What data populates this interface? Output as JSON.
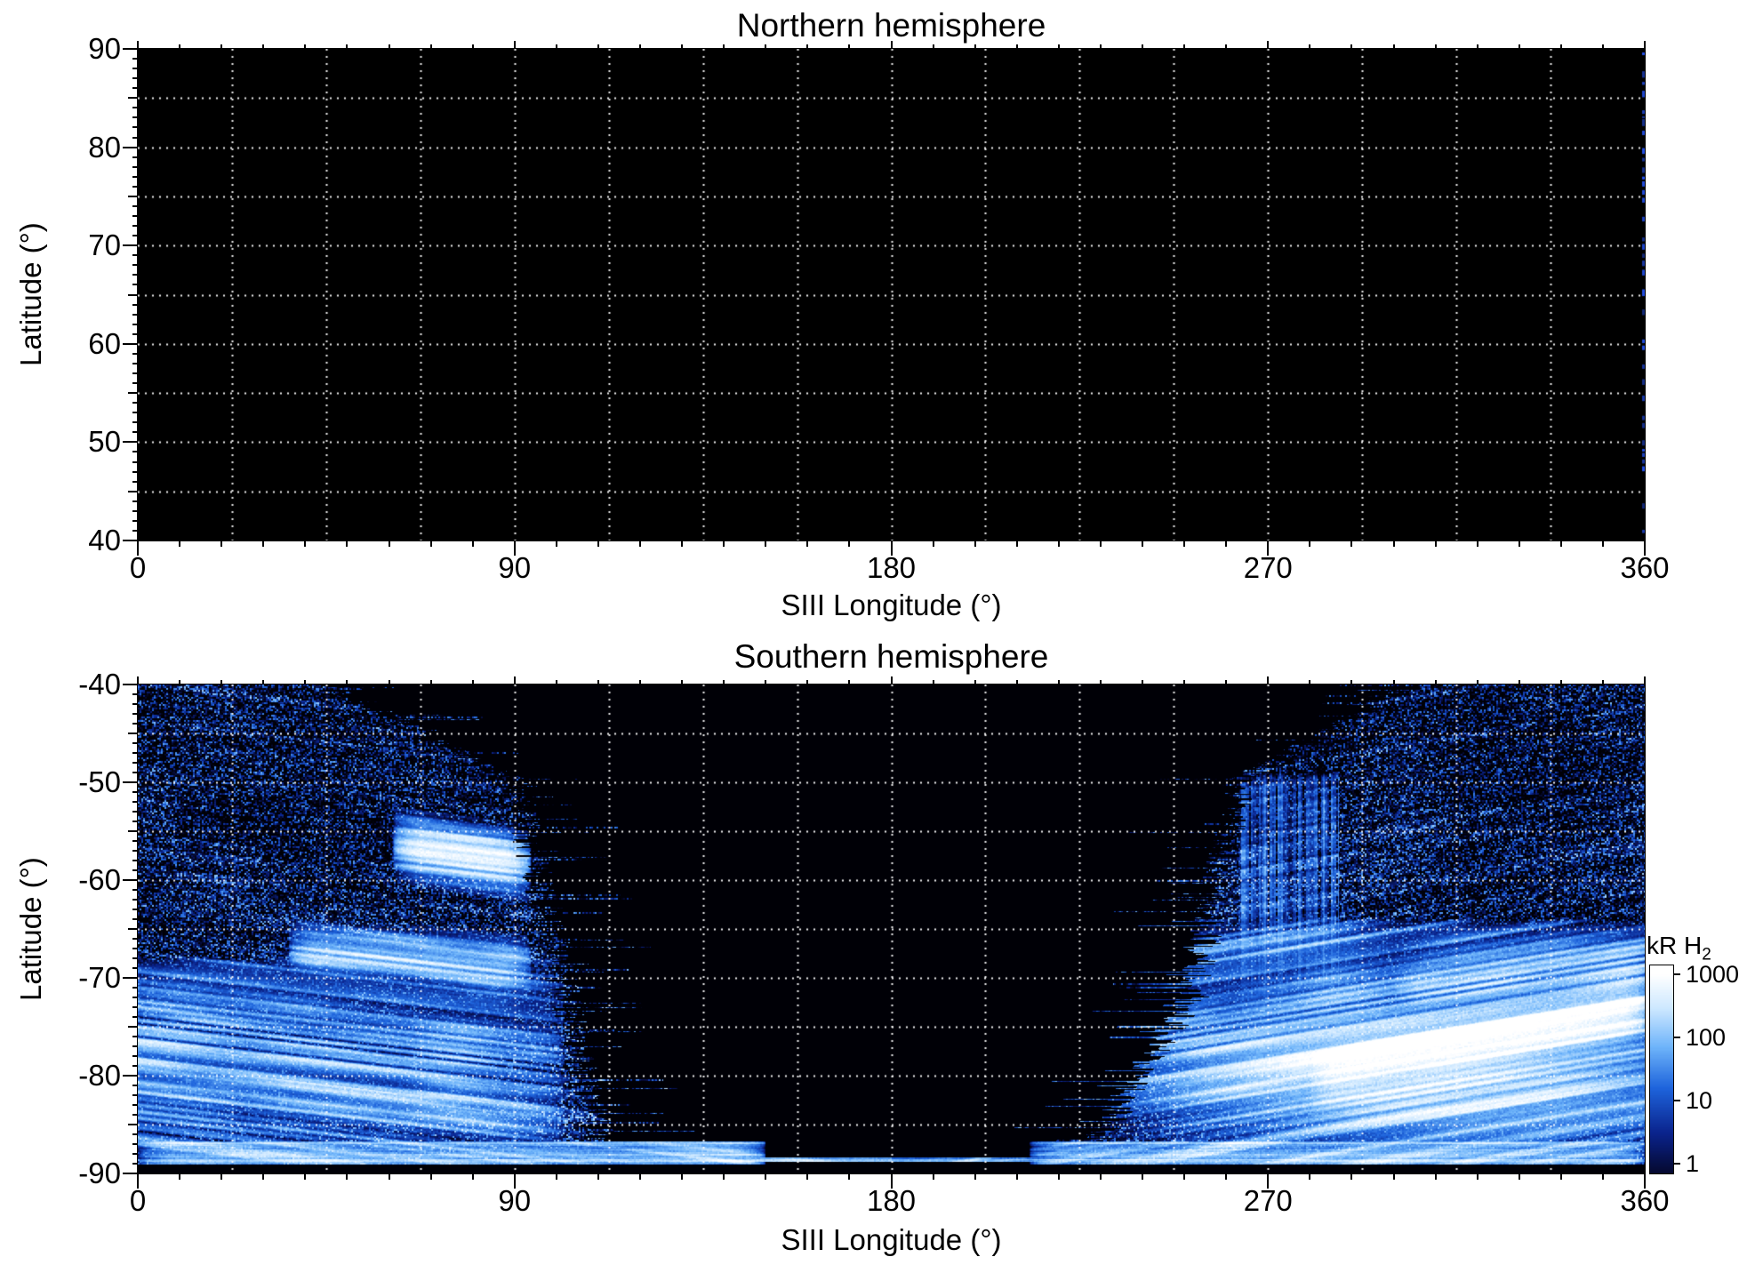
{
  "figure": {
    "bg": "#ffffff",
    "text_color": "#000000",
    "grid": {
      "x_interval_deg": 22.5,
      "y_interval_deg": 5,
      "color": "#ffffff",
      "style": "dotted"
    },
    "panels": [
      {
        "id": "north",
        "title": "Northern hemisphere",
        "xlabel": "SIII Longitude (°)",
        "ylabel": "Latitude (°)",
        "xticks": [
          0,
          90,
          180,
          270,
          360
        ],
        "yticks": [
          90,
          80,
          70,
          60,
          50,
          40
        ],
        "xlim": [
          0,
          360
        ],
        "ylim": [
          40,
          90
        ]
      },
      {
        "id": "south",
        "title": "Southern hemisphere",
        "xlabel": "SIII Longitude (°)",
        "ylabel": "Latitude (°)",
        "xticks": [
          0,
          90,
          180,
          270,
          360
        ],
        "yticks": [
          -40,
          -50,
          -60,
          -70,
          -80,
          -90
        ],
        "xlim": [
          0,
          360
        ],
        "ylim": [
          -90,
          -40
        ]
      }
    ],
    "colorbar": {
      "label": "kR H",
      "label_sub": "2",
      "ticks": [
        1000,
        100,
        10,
        1
      ],
      "scale": "log"
    }
  },
  "chart_data": {
    "type": "heatmap",
    "panels": [
      {
        "title": "Northern hemisphere",
        "xlabel": "SIII Longitude (°)",
        "ylabel": "Latitude (°)",
        "xlim": [
          0,
          360
        ],
        "ylim": [
          40,
          90
        ],
        "xticks": [
          0,
          90,
          180,
          270,
          360
        ],
        "yticks": [
          40,
          50,
          60,
          70,
          80,
          90
        ],
        "grid": true,
        "coverage": "none",
        "description": "Panel entirely black (no H2 emission data); only a sparse dashed column of faint blue pixels along the 360° right edge.",
        "edge_artifact": {
          "lon": 360,
          "color": "#2858ff"
        }
      },
      {
        "title": "Southern hemisphere",
        "xlabel": "SIII Longitude (°)",
        "ylabel": "Latitude (°)",
        "xlim": [
          0,
          360
        ],
        "ylim": [
          -90,
          -40
        ],
        "xticks": [
          0,
          90,
          180,
          270,
          360
        ],
        "yticks": [
          -90,
          -80,
          -70,
          -60,
          -50,
          -40
        ],
        "grid": true,
        "coverage": "Observed sectors roughly 0-110° and 230-360° longitude; 110-230° unobserved (black) except bright striated band near the pole (-87 to -89).",
        "coverage_model": {
          "left_edge": {
            "lat_breaks": [
              -40,
              -50,
              -62,
              -90
            ],
            "lon_values": [
              45,
              90,
              96.6,
              112
            ]
          },
          "right_edge": {
            "lat_breaks": [
              -40,
              -50,
              -72,
              -90
            ],
            "lon_values": [
              305,
              263,
              252,
              224
            ]
          },
          "polar_black_below_lat": -89.1
        },
        "features": [
          {
            "name": "dawn-main-arc",
            "type": "arc",
            "lon": [
              61,
              94
            ],
            "lat0": -56.3,
            "slope": -0.065,
            "sigma": 1.0,
            "peak_kr": 950
          },
          {
            "name": "dawn-secondary-arc",
            "type": "arc",
            "lon": [
              36,
              94
            ],
            "lat0": -67.2,
            "slope": -0.028,
            "sigma": 0.9,
            "peak_kr": 280
          },
          {
            "name": "dusk-main-oval",
            "type": "arc",
            "lon": [
              280,
              361
            ],
            "lat0": -80.8,
            "slope": 0.1,
            "sigma": 1.6,
            "peak_kr": 1100
          },
          {
            "name": "dusk-upper-arc",
            "type": "arc",
            "lon": [
              300,
              361
            ],
            "lat0": -71.0,
            "slope": 0.04,
            "sigma": 1.2,
            "peak_kr": 130
          },
          {
            "name": "dusk-bright-blob",
            "type": "blob",
            "lon_c": 307,
            "lat_c": -79.5,
            "sig_lon": 26,
            "sig_lat": 3.0,
            "peak_kr": 800
          },
          {
            "name": "diffuse-lower-left",
            "type": "region",
            "lon": [
              -30,
              102
            ],
            "lat": [
              -88,
              -68
            ],
            "peak_kr": 140
          },
          {
            "name": "diffuse-lower-right",
            "type": "region",
            "lon": [
              238,
              392
            ],
            "lat": [
              -87,
              -64
            ],
            "peak_kr": 95
          },
          {
            "name": "dusk-vertical-streaks",
            "type": "streaks",
            "lon": [
              263,
              287
            ],
            "lat": [
              -72.5,
              -49
            ],
            "peak_kr": 60
          },
          {
            "name": "polar-bright-band",
            "type": "band",
            "lat": [
              -89.1,
              -86.7
            ],
            "segments": [
              [
                0,
                150
              ],
              [
                213,
                360
              ]
            ],
            "peak_kr": 420
          },
          {
            "name": "polar-thin-line",
            "type": "band",
            "lat": [
              -88.8,
              -88.35
            ],
            "segments": [
              [
                118,
                222
              ]
            ],
            "peak_kr": 220
          }
        ]
      }
    ],
    "colorbar": {
      "label": "kR H2",
      "scale": "log",
      "range_kr": [
        1,
        1000
      ],
      "ticks_kr": [
        1,
        10,
        100,
        1000
      ]
    }
  }
}
